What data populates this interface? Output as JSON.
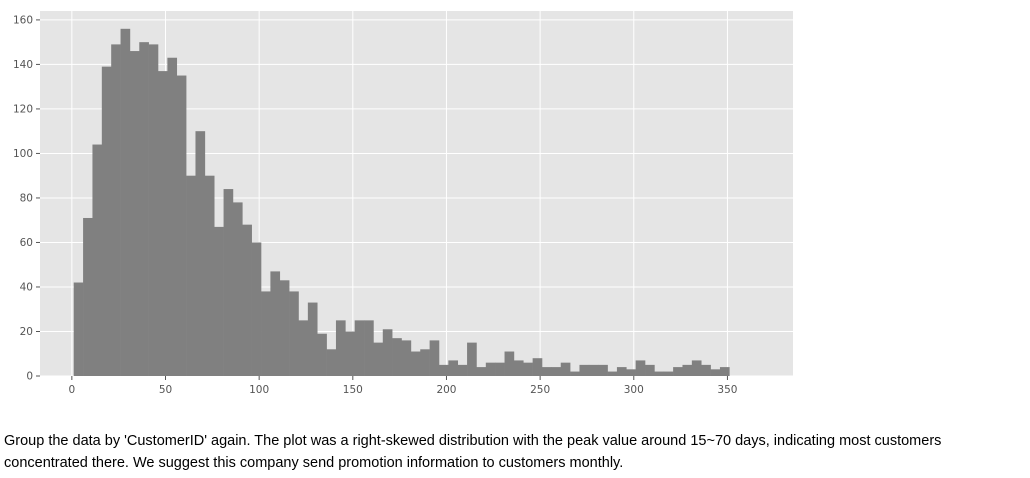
{
  "chart_data": {
    "type": "bar",
    "title": "",
    "xlabel": "",
    "ylabel": "",
    "bin_width": 5,
    "bin_start": 1,
    "values": [
      42,
      71,
      104,
      139,
      149,
      156,
      146,
      150,
      149,
      137,
      143,
      135,
      90,
      110,
      90,
      67,
      84,
      78,
      68,
      60,
      38,
      47,
      43,
      38,
      25,
      33,
      19,
      12,
      25,
      20,
      25,
      25,
      15,
      21,
      17,
      16,
      11,
      12,
      16,
      5,
      7,
      5,
      15,
      4,
      6,
      6,
      11,
      7,
      6,
      8,
      4,
      4,
      6,
      2,
      5,
      5,
      5,
      2,
      4,
      3,
      7,
      5,
      2,
      2,
      4,
      5,
      7,
      5,
      3,
      4
    ],
    "xlim": [
      -17,
      385
    ],
    "ylim": [
      0,
      164
    ],
    "xticks": [
      0,
      50,
      100,
      150,
      200,
      250,
      300,
      350
    ],
    "yticks": [
      0,
      20,
      40,
      60,
      80,
      100,
      120,
      140,
      160
    ],
    "grid": true,
    "colors": {
      "bar": "#808080",
      "plot_background": "#e5e5e5",
      "grid": "#ffffff",
      "tick_text": "#555555"
    }
  },
  "caption": {
    "line1": "Group the data by 'CustomerID' again. The plot was a right-skewed distribution with the peak value around 15~70 days, indicating most customers",
    "line2": "concentrated there. We suggest this company send promotion information to customers monthly."
  }
}
